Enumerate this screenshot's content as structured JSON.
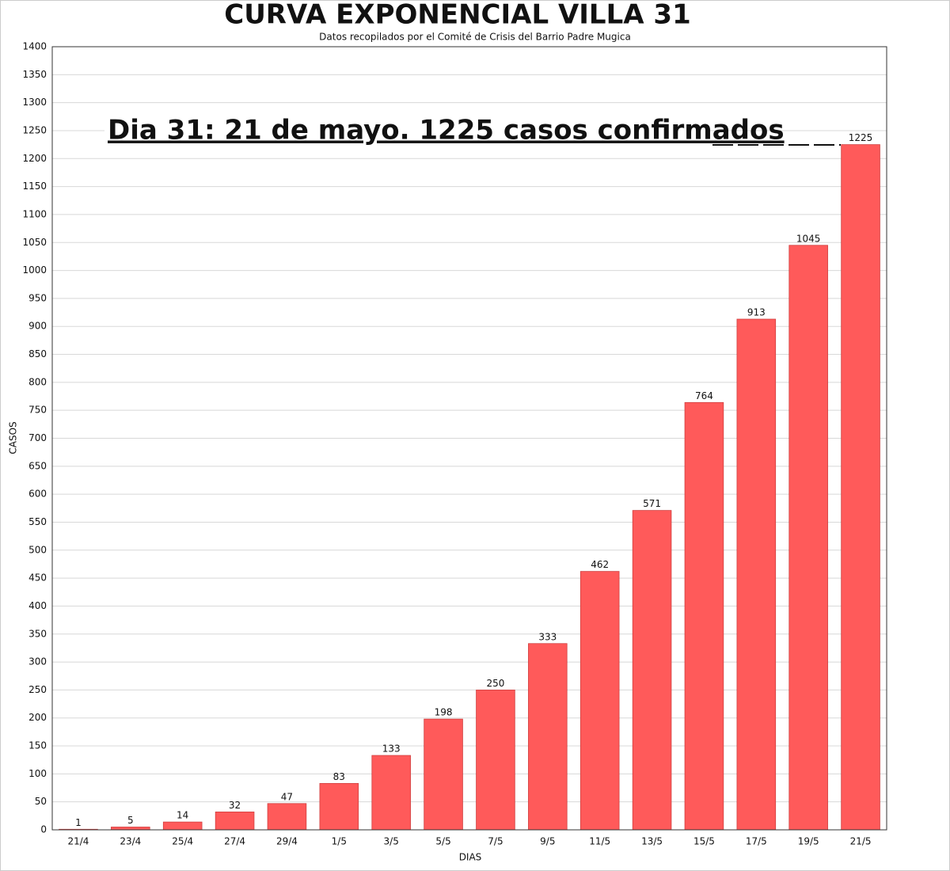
{
  "chart_data": {
    "type": "bar",
    "title": "CURVA EXPONENCIAL VILLA 31",
    "subtitle": "Datos recopilados por el Comité de Crisis del Barrio Padre Mugica",
    "annotation": "Dia 31: 21 de mayo. 1225 casos confirmados",
    "x_label": "DIAS",
    "y_label": "CASOS",
    "categories": [
      "21/4",
      "23/4",
      "25/4",
      "27/4",
      "29/4",
      "1/5",
      "3/5",
      "5/5",
      "7/5",
      "9/5",
      "11/5",
      "13/5",
      "15/5",
      "17/5",
      "19/5",
      "21/5"
    ],
    "values": [
      1,
      5,
      14,
      32,
      47,
      83,
      133,
      198,
      250,
      333,
      462,
      571,
      764,
      913,
      1045,
      1225
    ],
    "color": "#ff5a5a",
    "ylim": [
      0,
      1400
    ],
    "yticks": [
      0,
      50,
      100,
      150,
      200,
      250,
      300,
      350,
      400,
      450,
      500,
      550,
      600,
      650,
      700,
      750,
      800,
      850,
      900,
      950,
      1000,
      1050,
      1100,
      1150,
      1200,
      1250,
      1300,
      1350,
      1400
    ],
    "grid": true
  }
}
